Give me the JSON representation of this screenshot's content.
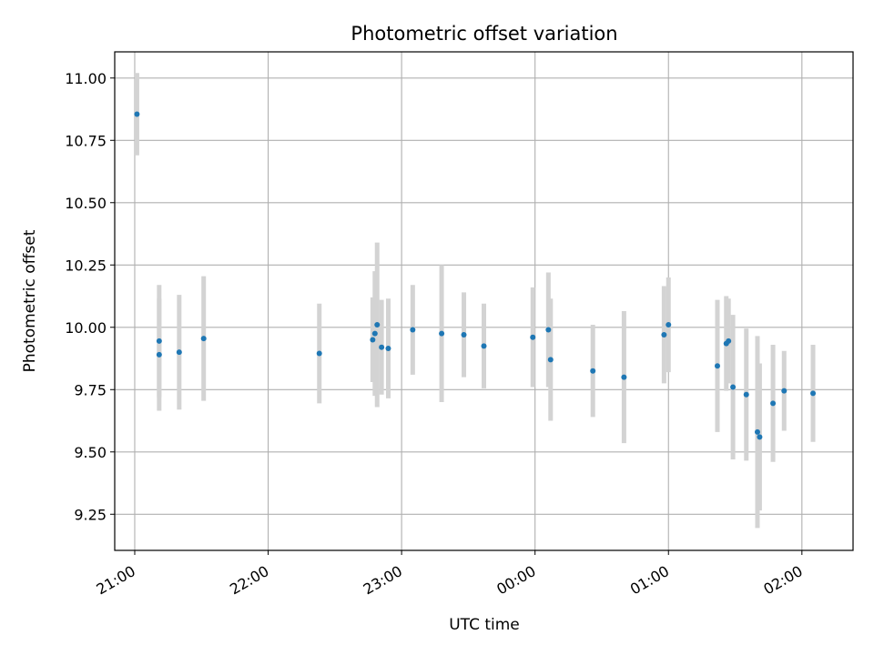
{
  "chart_data": {
    "type": "scatter",
    "title": "Photometric offset variation",
    "xlabel": "UTC time",
    "ylabel": "Photometric offset",
    "grid": true,
    "xlim": [
      "20:51",
      "02:23"
    ],
    "ylim": [
      9.105,
      11.105
    ],
    "x_ticks": [
      "21:00",
      "22:00",
      "23:00",
      "00:00",
      "01:00",
      "02:00"
    ],
    "y_ticks": [
      9.25,
      9.5,
      9.75,
      10.0,
      10.25,
      10.5,
      10.75,
      11.0
    ],
    "y_tick_labels": [
      "9.25",
      "9.50",
      "9.75",
      "10.00",
      "10.25",
      "10.50",
      "10.75",
      "11.00"
    ],
    "colors": {
      "point": "#1f77b4",
      "errorbar": "#d3d3d3",
      "grid": "#b0b0b0"
    },
    "points": [
      {
        "x": "21:01",
        "y": 10.855,
        "yerr": 0.165
      },
      {
        "x": "21:11",
        "y": 9.89,
        "yerr": 0.225
      },
      {
        "x": "21:11",
        "y": 9.945,
        "yerr": 0.225
      },
      {
        "x": "21:20",
        "y": 9.9,
        "yerr": 0.23
      },
      {
        "x": "21:31",
        "y": 9.955,
        "yerr": 0.25
      },
      {
        "x": "22:23",
        "y": 9.895,
        "yerr": 0.2
      },
      {
        "x": "22:47",
        "y": 9.95,
        "yerr": 0.17
      },
      {
        "x": "22:48",
        "y": 9.975,
        "yerr": 0.25
      },
      {
        "x": "22:49",
        "y": 10.01,
        "yerr": 0.33
      },
      {
        "x": "22:51",
        "y": 9.92,
        "yerr": 0.19
      },
      {
        "x": "22:54",
        "y": 9.915,
        "yerr": 0.2
      },
      {
        "x": "23:05",
        "y": 9.99,
        "yerr": 0.18
      },
      {
        "x": "23:18",
        "y": 9.975,
        "yerr": 0.275
      },
      {
        "x": "23:28",
        "y": 9.97,
        "yerr": 0.17
      },
      {
        "x": "23:37",
        "y": 9.925,
        "yerr": 0.17
      },
      {
        "x": "23:59",
        "y": 9.96,
        "yerr": 0.2
      },
      {
        "x": "00:06",
        "y": 9.99,
        "yerr": 0.23
      },
      {
        "x": "00:07",
        "y": 9.87,
        "yerr": 0.245
      },
      {
        "x": "00:26",
        "y": 9.825,
        "yerr": 0.185
      },
      {
        "x": "00:40",
        "y": 9.8,
        "yerr": 0.265
      },
      {
        "x": "00:58",
        "y": 9.97,
        "yerr": 0.195
      },
      {
        "x": "01:00",
        "y": 10.01,
        "yerr": 0.19
      },
      {
        "x": "01:22",
        "y": 9.845,
        "yerr": 0.265
      },
      {
        "x": "01:26",
        "y": 9.935,
        "yerr": 0.19
      },
      {
        "x": "01:27",
        "y": 9.945,
        "yerr": 0.17
      },
      {
        "x": "01:29",
        "y": 9.76,
        "yerr": 0.29
      },
      {
        "x": "01:35",
        "y": 9.73,
        "yerr": 0.265
      },
      {
        "x": "01:40",
        "y": 9.58,
        "yerr": 0.385
      },
      {
        "x": "01:41",
        "y": 9.56,
        "yerr": 0.295
      },
      {
        "x": "01:47",
        "y": 9.695,
        "yerr": 0.235
      },
      {
        "x": "01:52",
        "y": 9.745,
        "yerr": 0.16
      },
      {
        "x": "02:05",
        "y": 9.735,
        "yerr": 0.195
      }
    ]
  }
}
